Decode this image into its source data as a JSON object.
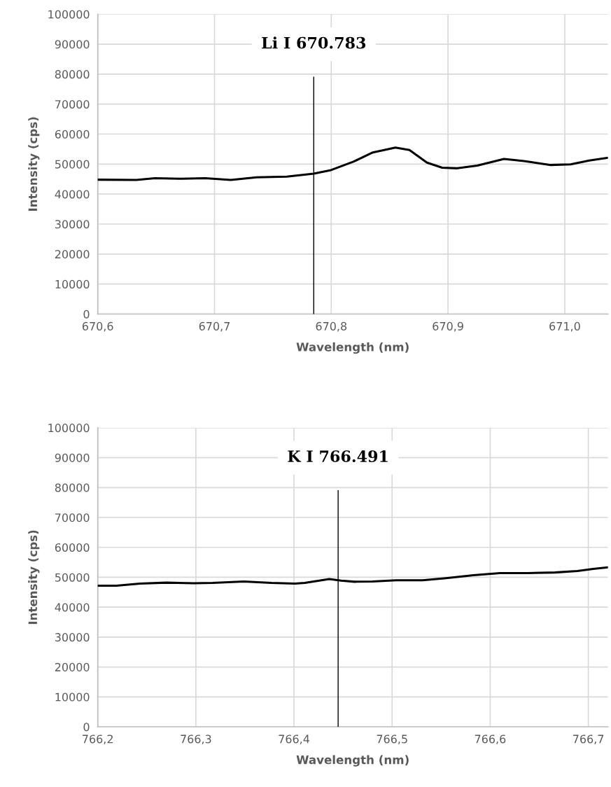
{
  "chart_data": [
    {
      "type": "line",
      "xlabel": "Wavelength (nm)",
      "ylabel": "Intensity (cps)",
      "x": [
        670.6,
        670.633,
        670.649,
        670.672,
        670.692,
        670.714,
        670.736,
        670.762,
        670.785,
        670.799,
        670.819,
        670.835,
        670.855,
        670.867,
        670.882,
        670.895,
        670.908,
        670.925,
        670.948,
        670.965,
        670.988,
        671.005,
        671.021,
        671.037
      ],
      "series": [
        {
          "color": "#000000",
          "values": [
            44800,
            44700,
            45300,
            45100,
            45300,
            44700,
            45600,
            45800,
            46800,
            47900,
            50800,
            53800,
            55500,
            54700,
            50500,
            48800,
            48600,
            49500,
            51700,
            51000,
            49700,
            49900,
            51200,
            52100
          ]
        }
      ],
      "xlim": [
        670.6,
        671.037
      ],
      "xticks": [
        {
          "value": 670.6,
          "label": "670,6"
        },
        {
          "value": 670.7,
          "label": "670,7"
        },
        {
          "value": 670.8,
          "label": "670,8"
        },
        {
          "value": 670.9,
          "label": "670,9"
        },
        {
          "value": 671.0,
          "label": "671,0"
        }
      ],
      "ylim": [
        0,
        100000
      ],
      "yticks": [
        0,
        10000,
        20000,
        30000,
        40000,
        50000,
        60000,
        70000,
        80000,
        90000,
        100000
      ],
      "ref_lines": [
        {
          "axis": "x",
          "value": 670.785,
          "label": "Li I 670.783",
          "color": "#000000"
        }
      ],
      "grid": true,
      "marker": "none",
      "line_style": "solid"
    },
    {
      "type": "line",
      "xlabel": "Wavelength (nm)",
      "ylabel": "Intensity (cps)",
      "x": [
        766.2,
        766.219,
        766.243,
        766.27,
        766.298,
        766.317,
        766.349,
        766.377,
        766.401,
        766.411,
        766.436,
        766.448,
        766.462,
        766.48,
        766.504,
        766.531,
        766.555,
        766.583,
        766.61,
        766.638,
        766.666,
        766.689,
        766.705,
        766.72
      ],
      "series": [
        {
          "color": "#000000",
          "values": [
            47200,
            47200,
            47900,
            48200,
            48000,
            48100,
            48600,
            48100,
            47900,
            48100,
            49400,
            48900,
            48500,
            48600,
            49000,
            49000,
            49700,
            50700,
            51400,
            51400,
            51600,
            52100,
            52800,
            53300
          ]
        }
      ],
      "xlim": [
        766.2,
        766.72
      ],
      "xticks": [
        {
          "value": 766.2,
          "label": "766,2"
        },
        {
          "value": 766.3,
          "label": "766,3"
        },
        {
          "value": 766.4,
          "label": "766,4"
        },
        {
          "value": 766.5,
          "label": "766,5"
        },
        {
          "value": 766.6,
          "label": "766,6"
        },
        {
          "value": 766.7,
          "label": "766,7"
        }
      ],
      "ylim": [
        0,
        100000
      ],
      "yticks": [
        0,
        10000,
        20000,
        30000,
        40000,
        50000,
        60000,
        70000,
        80000,
        90000,
        100000
      ],
      "ref_lines": [
        {
          "axis": "x",
          "value": 766.445,
          "label": "K I 766.491",
          "color": "#000000"
        }
      ],
      "grid": true,
      "marker": "none",
      "line_style": "solid"
    }
  ]
}
